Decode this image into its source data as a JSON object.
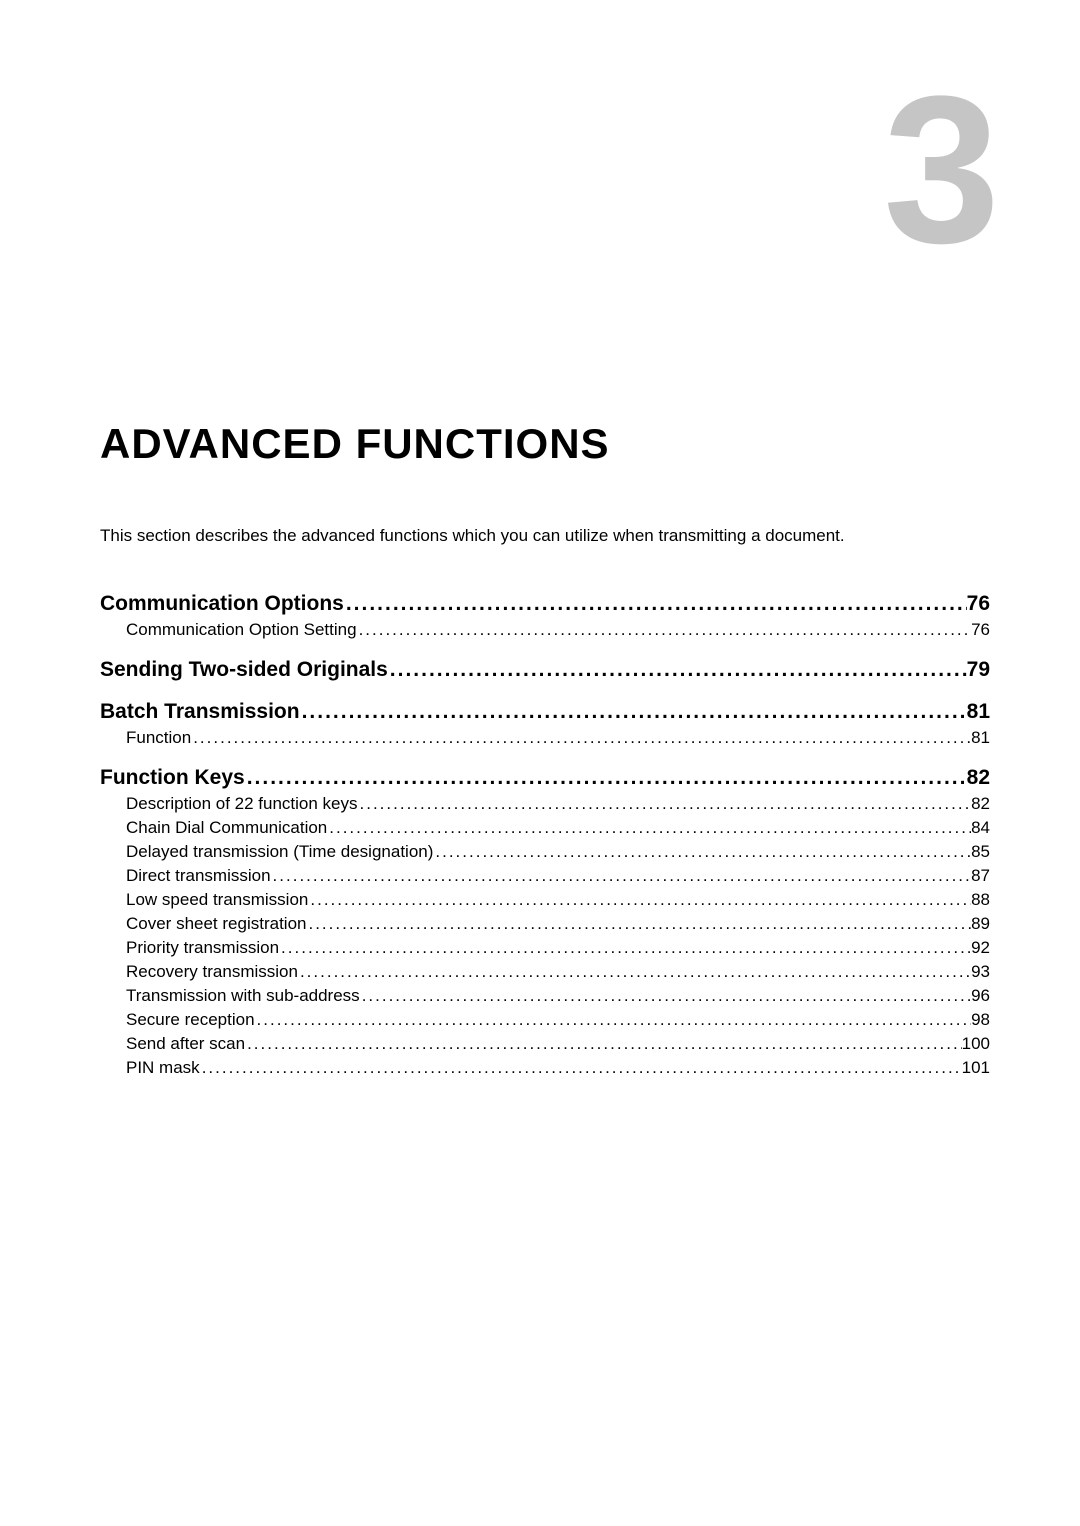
{
  "chapter": {
    "number": "3",
    "title": "ADVANCED FUNCTIONS",
    "intro": "This section describes the advanced functions which you can utilize when transmitting a document."
  },
  "toc": [
    {
      "level": "section",
      "label": "Communication Options",
      "page": "76"
    },
    {
      "level": "subsection",
      "label": "Communication Option Setting",
      "page": "76"
    },
    {
      "level": "section",
      "label": "Sending Two-sided Originals",
      "page": "79"
    },
    {
      "level": "section",
      "label": "Batch Transmission",
      "page": "81"
    },
    {
      "level": "subsection",
      "label": "Function",
      "page": "81"
    },
    {
      "level": "section",
      "label": "Function Keys",
      "page": "82"
    },
    {
      "level": "subsection",
      "label": "Description of 22 function keys",
      "page": "82"
    },
    {
      "level": "subsection",
      "label": "Chain Dial Communication",
      "page": "84"
    },
    {
      "level": "subsection",
      "label": "Delayed transmission (Time designation)",
      "page": "85"
    },
    {
      "level": "subsection",
      "label": "Direct transmission",
      "page": "87"
    },
    {
      "level": "subsection",
      "label": "Low speed transmission",
      "page": "88"
    },
    {
      "level": "subsection",
      "label": "Cover sheet registration",
      "page": "89"
    },
    {
      "level": "subsection",
      "label": "Priority transmission",
      "page": "92"
    },
    {
      "level": "subsection",
      "label": "Recovery transmission",
      "page": "93"
    },
    {
      "level": "subsection",
      "label": "Transmission with sub-address",
      "page": "96"
    },
    {
      "level": "subsection",
      "label": "Secure reception",
      "page": "98"
    },
    {
      "level": "subsection",
      "label": "Send after scan",
      "page": "100"
    },
    {
      "level": "subsection",
      "label": "PIN mask",
      "page": "101"
    }
  ],
  "style": {
    "background": "#ffffff",
    "chapter_number_color": "#c5c5c5",
    "text_color": "#000000"
  }
}
